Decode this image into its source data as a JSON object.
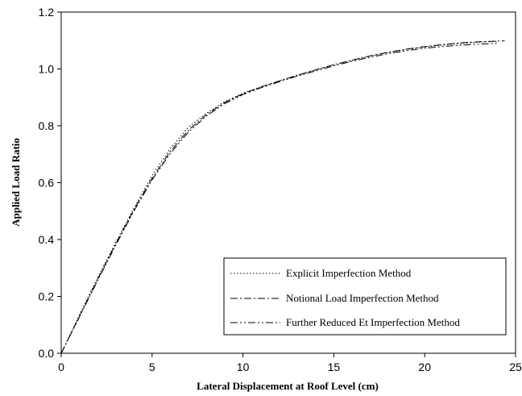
{
  "chart_data": {
    "type": "line",
    "title": "",
    "xlabel": "Lateral Displacement at Roof Level (cm)",
    "ylabel": "Applied Load Ratio",
    "xlim": [
      0,
      25
    ],
    "ylim": [
      0,
      1.2
    ],
    "xticks": [
      "0",
      "5",
      "10",
      "15",
      "20",
      "25"
    ],
    "yticks": [
      "0.0",
      "0.2",
      "0.4",
      "0.6",
      "0.8",
      "1.0",
      "1.2"
    ],
    "grid": false,
    "legend_placement": "bottom-right",
    "series": [
      {
        "name": "Explicit Imperfection Method",
        "style": "dotted",
        "color": "#000000",
        "x": [
          0,
          1,
          2,
          3,
          4,
          5,
          6,
          7,
          8,
          9,
          10,
          11,
          12,
          13,
          14,
          15,
          16,
          17,
          18,
          19,
          20,
          21,
          22,
          23,
          24
        ],
        "y": [
          0,
          0.135,
          0.265,
          0.39,
          0.51,
          0.625,
          0.72,
          0.795,
          0.845,
          0.885,
          0.915,
          0.937,
          0.958,
          0.978,
          0.997,
          1.015,
          1.03,
          1.045,
          1.058,
          1.068,
          1.077,
          1.084,
          1.09,
          1.094,
          1.097
        ]
      },
      {
        "name": "Notional Load Imperfection Method",
        "style": "dash-dot",
        "color": "#000000",
        "x": [
          0,
          1,
          2,
          3,
          4,
          5,
          6,
          7,
          8,
          9,
          10,
          11,
          12,
          13,
          14,
          15,
          16,
          17,
          18,
          19,
          20,
          21,
          22,
          23,
          24.4
        ],
        "y": [
          0,
          0.13,
          0.26,
          0.385,
          0.505,
          0.615,
          0.71,
          0.785,
          0.84,
          0.882,
          0.913,
          0.937,
          0.958,
          0.978,
          0.997,
          1.015,
          1.031,
          1.046,
          1.059,
          1.07,
          1.079,
          1.086,
          1.092,
          1.096,
          1.099
        ]
      },
      {
        "name": "Further Reduced Et Imperfection Method",
        "style": "dash-dot-dot",
        "color": "#000000",
        "x": [
          0,
          1,
          2,
          3,
          4,
          5,
          6,
          7,
          8,
          9,
          10,
          11,
          12,
          13,
          14,
          15,
          16,
          17,
          18,
          19,
          20,
          21,
          22,
          23,
          24
        ],
        "y": [
          0,
          0.128,
          0.255,
          0.38,
          0.5,
          0.61,
          0.703,
          0.778,
          0.835,
          0.878,
          0.91,
          0.934,
          0.955,
          0.975,
          0.993,
          1.011,
          1.027,
          1.041,
          1.054,
          1.064,
          1.073,
          1.079,
          1.084,
          1.087,
          1.09
        ]
      }
    ]
  }
}
